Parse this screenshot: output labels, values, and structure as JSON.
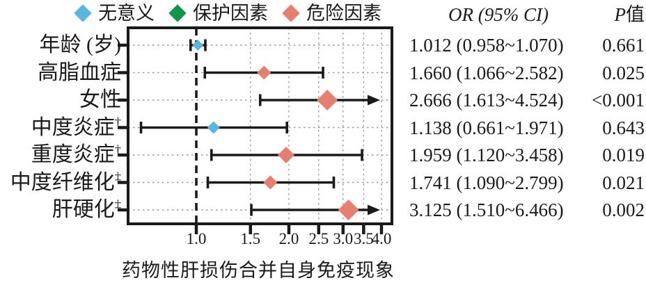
{
  "colors": {
    "nonsignificant": "#58b7df",
    "protective": "#0f9848",
    "risk": "#e77f70",
    "axis": "#1a1a1a",
    "grid": "#999999"
  },
  "legend": [
    {
      "label": "无意义",
      "color_key": "nonsignificant"
    },
    {
      "label": "保护因素",
      "color_key": "protective"
    },
    {
      "label": "危险因素",
      "color_key": "risk"
    }
  ],
  "columns": {
    "or_header": "OR (95% CI)",
    "p_header": "P值"
  },
  "chart_data": {
    "type": "forest",
    "x_scale": "log",
    "x_ticks": [
      1.0,
      1.5,
      2.0,
      2.5,
      3.0,
      3.5,
      4.0
    ],
    "x_tick_labels": [
      "1.0",
      "1.5",
      "2.0",
      "2.5",
      "3.0",
      "3.5",
      "4.0"
    ],
    "x_axis_range": [
      0.6,
      4.3
    ],
    "reference_line": 1.0,
    "grid": "dotted",
    "xlabel": "药物性肝损伤合并自身免疫现象",
    "rows": [
      {
        "label": "年龄 (岁)",
        "sup": "",
        "or": 1.012,
        "ci_low": 0.958,
        "ci_high": 1.07,
        "or_ci_text": "1.012 (0.958~1.070)",
        "p_text": "0.661",
        "type": "nonsignificant",
        "weight": 8,
        "arrow_right": false
      },
      {
        "label": "高脂血症",
        "sup": "",
        "or": 1.66,
        "ci_low": 1.066,
        "ci_high": 2.582,
        "or_ci_text": "1.660 (1.066~2.582)",
        "p_text": "0.025",
        "type": "risk",
        "weight": 10,
        "arrow_right": false
      },
      {
        "label": "女性",
        "sup": "",
        "or": 2.666,
        "ci_low": 1.613,
        "ci_high": 4.524,
        "or_ci_text": "2.666 (1.613~4.524)",
        "p_text": "<0.001",
        "type": "risk",
        "weight": 15,
        "arrow_right": true
      },
      {
        "label": "中度炎症",
        "sup": "†",
        "or": 1.138,
        "ci_low": 0.661,
        "ci_high": 1.971,
        "or_ci_text": "1.138 (0.661~1.971)",
        "p_text": "0.643",
        "type": "nonsignificant",
        "weight": 9,
        "arrow_right": false
      },
      {
        "label": "重度炎症",
        "sup": "†",
        "or": 1.959,
        "ci_low": 1.12,
        "ci_high": 3.458,
        "or_ci_text": "1.959 (1.120~3.458)",
        "p_text": "0.019",
        "type": "risk",
        "weight": 12,
        "arrow_right": false
      },
      {
        "label": "中度纤维化",
        "sup": "‡",
        "or": 1.741,
        "ci_low": 1.09,
        "ci_high": 2.799,
        "or_ci_text": "1.741 (1.090~2.799)",
        "p_text": "0.021",
        "type": "risk",
        "weight": 10,
        "arrow_right": false
      },
      {
        "label": "肝硬化",
        "sup": "‡",
        "or": 3.125,
        "ci_low": 1.51,
        "ci_high": 6.466,
        "or_ci_text": "3.125 (1.510~6.466)",
        "p_text": "0.002",
        "type": "risk",
        "weight": 15,
        "arrow_right": true
      }
    ]
  }
}
